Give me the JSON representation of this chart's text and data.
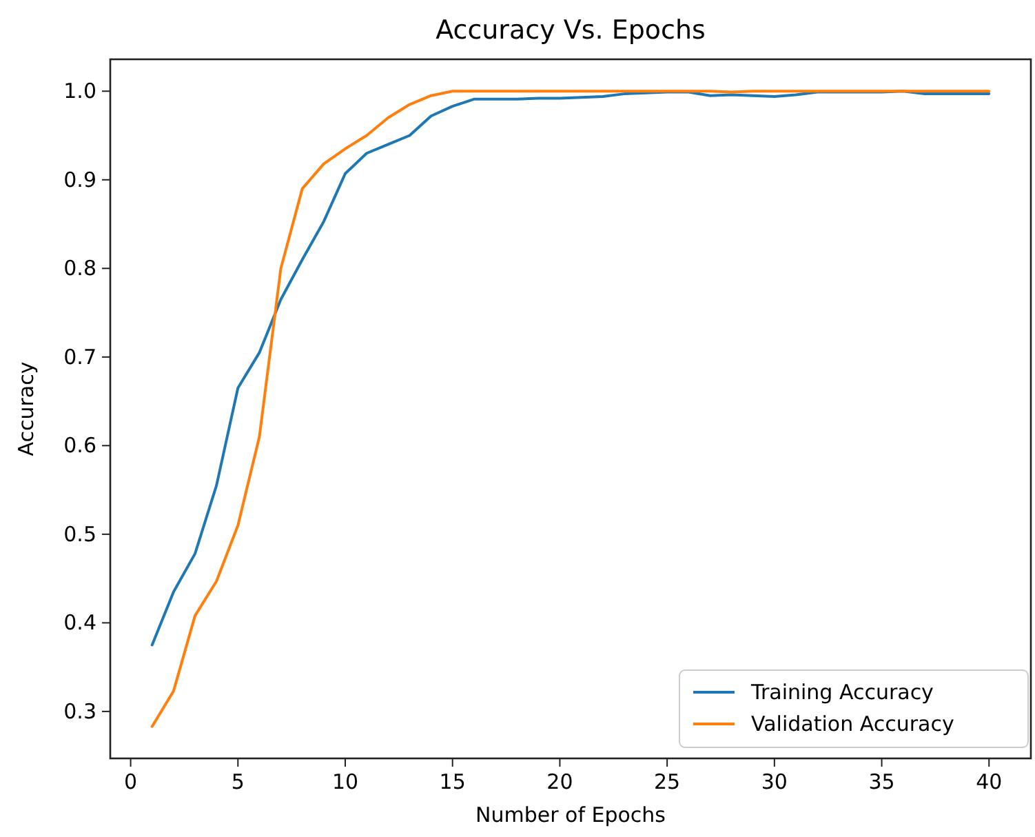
{
  "chart_data": {
    "type": "line",
    "title": "Accuracy Vs. Epochs",
    "xlabel": "Number of Epochs",
    "ylabel": "Accuracy",
    "x": [
      1,
      2,
      3,
      4,
      5,
      6,
      7,
      8,
      9,
      10,
      11,
      12,
      13,
      14,
      15,
      16,
      17,
      18,
      19,
      20,
      21,
      22,
      23,
      24,
      25,
      26,
      27,
      28,
      29,
      30,
      31,
      32,
      33,
      34,
      35,
      36,
      37,
      38,
      39,
      40
    ],
    "series": [
      {
        "name": "Training Accuracy",
        "color": "#1f77b4",
        "values": [
          0.375,
          0.435,
          0.478,
          0.555,
          0.665,
          0.705,
          0.765,
          0.81,
          0.853,
          0.907,
          0.93,
          0.94,
          0.95,
          0.972,
          0.983,
          0.991,
          0.991,
          0.991,
          0.992,
          0.992,
          0.993,
          0.994,
          0.997,
          0.998,
          0.999,
          0.999,
          0.995,
          0.996,
          0.995,
          0.994,
          0.996,
          0.999,
          0.999,
          0.999,
          0.999,
          1.0,
          0.997,
          0.997,
          0.997,
          0.997
        ]
      },
      {
        "name": "Validation Accuracy",
        "color": "#ff7f0e",
        "values": [
          0.283,
          0.323,
          0.408,
          0.447,
          0.51,
          0.61,
          0.8,
          0.89,
          0.918,
          0.935,
          0.95,
          0.97,
          0.985,
          0.995,
          1.0,
          1.0,
          1.0,
          1.0,
          1.0,
          1.0,
          1.0,
          1.0,
          1.0,
          1.0,
          1.0,
          1.0,
          1.0,
          0.999,
          1.0,
          1.0,
          1.0,
          1.0,
          1.0,
          1.0,
          1.0,
          1.0,
          1.0,
          1.0,
          1.0,
          1.0
        ]
      }
    ],
    "xlim": [
      -0.95,
      41.95
    ],
    "xticks": [
      0,
      5,
      10,
      15,
      20,
      25,
      30,
      35,
      40
    ],
    "ylim": [
      0.247,
      1.036
    ],
    "yticks": [
      {
        "value": 0.3,
        "label": "0.3"
      },
      {
        "value": 0.4,
        "label": "0.4"
      },
      {
        "value": 0.5,
        "label": "0.5"
      },
      {
        "value": 0.6,
        "label": "0.6"
      },
      {
        "value": 0.7,
        "label": "0.7"
      },
      {
        "value": 0.8,
        "label": "0.8"
      },
      {
        "value": 0.9,
        "label": "0.9"
      },
      {
        "value": 1.0,
        "label": "1.0"
      }
    ],
    "legend": "bottom right",
    "grid": false,
    "marker": "none",
    "line_style": "solid"
  }
}
